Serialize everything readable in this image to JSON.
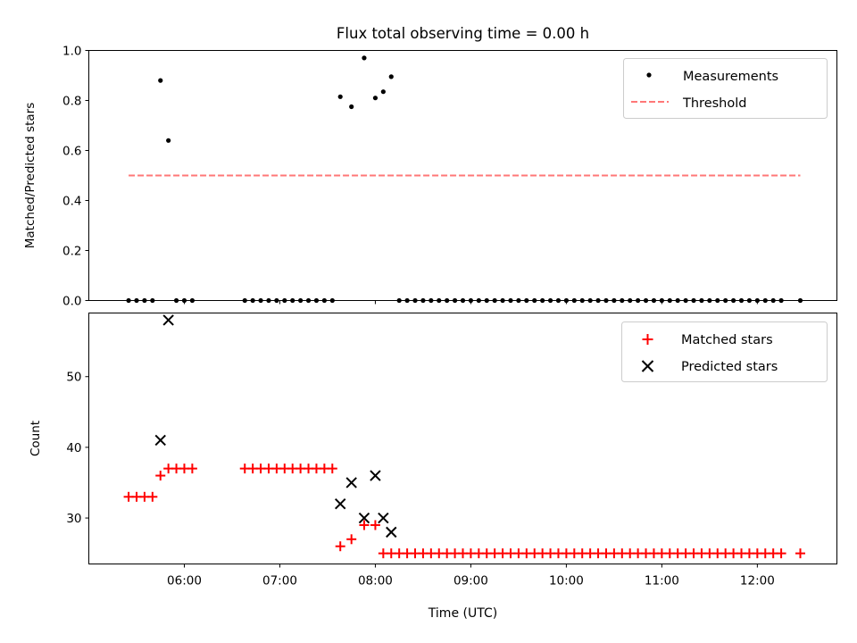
{
  "figure": {
    "title": "Flux total observing time = 0.00 h",
    "xlabel": "Time (UTC)"
  },
  "chart_data": [
    {
      "type": "scatter",
      "ylabel": "Matched/Predicted stars",
      "ylim": [
        0,
        1.0
      ],
      "yticks": [
        "0.0",
        "0.2",
        "0.4",
        "0.6",
        "0.8",
        "1.0"
      ],
      "xlim": [
        "05:00",
        "12:50"
      ],
      "legend": {
        "placement": "upper right",
        "entries": [
          "Measurements",
          "Threshold"
        ]
      },
      "series": [
        {
          "name": "Measurements",
          "color": "#000000",
          "marker": "dot",
          "x": [
            "05:25",
            "05:30",
            "05:35",
            "05:40",
            "05:45",
            "05:50",
            "05:55",
            "06:00",
            "06:05",
            "06:38",
            "06:43",
            "06:48",
            "06:53",
            "06:58",
            "07:03",
            "07:08",
            "07:13",
            "07:18",
            "07:23",
            "07:28",
            "07:33",
            "07:38",
            "07:45",
            "07:53",
            "08:00",
            "08:05",
            "08:10",
            "08:15",
            "08:20",
            "08:25",
            "08:30",
            "08:35",
            "08:40",
            "08:45",
            "08:50",
            "08:55",
            "09:00",
            "09:05",
            "09:10",
            "09:15",
            "09:20",
            "09:25",
            "09:30",
            "09:35",
            "09:40",
            "09:45",
            "09:50",
            "09:55",
            "10:00",
            "10:05",
            "10:10",
            "10:15",
            "10:20",
            "10:25",
            "10:30",
            "10:35",
            "10:40",
            "10:45",
            "10:50",
            "10:55",
            "11:00",
            "11:05",
            "11:10",
            "11:15",
            "11:20",
            "11:25",
            "11:30",
            "11:35",
            "11:40",
            "11:45",
            "11:50",
            "11:55",
            "12:00",
            "12:05",
            "12:10",
            "12:15",
            "12:27"
          ],
          "y": [
            0,
            0,
            0,
            0,
            0.88,
            0.64,
            0,
            0,
            0,
            0,
            0,
            0,
            0,
            0,
            0,
            0,
            0,
            0,
            0,
            0,
            0,
            0.815,
            0.775,
            0.97,
            0.81,
            0.835,
            0.895,
            0,
            0,
            0,
            0,
            0,
            0,
            0,
            0,
            0,
            0,
            0,
            0,
            0,
            0,
            0,
            0,
            0,
            0,
            0,
            0,
            0,
            0,
            0,
            0,
            0,
            0,
            0,
            0,
            0,
            0,
            0,
            0,
            0,
            0,
            0,
            0,
            0,
            0,
            0,
            0,
            0,
            0,
            0,
            0,
            0,
            0,
            0,
            0,
            0,
            0
          ]
        },
        {
          "name": "Threshold",
          "color": "#ff7777",
          "style": "dashed",
          "x": [
            "05:25",
            "12:27"
          ],
          "y": [
            0.5,
            0.5
          ]
        }
      ]
    },
    {
      "type": "scatter",
      "ylabel": "Count",
      "ylim": [
        23.5,
        59
      ],
      "yticks": [
        "30",
        "40",
        "50"
      ],
      "xlim": [
        "05:00",
        "12:50"
      ],
      "xticks": [
        "06:00",
        "07:00",
        "08:00",
        "09:00",
        "10:00",
        "11:00",
        "12:00"
      ],
      "legend": {
        "placement": "upper right",
        "entries": [
          "Matched stars",
          "Predicted stars"
        ]
      },
      "series": [
        {
          "name": "Matched stars",
          "color": "#ff0000",
          "marker": "plus",
          "x": [
            "05:25",
            "05:30",
            "05:35",
            "05:40",
            "05:45",
            "05:50",
            "05:55",
            "06:00",
            "06:05",
            "06:38",
            "06:43",
            "06:48",
            "06:53",
            "06:58",
            "07:03",
            "07:08",
            "07:13",
            "07:18",
            "07:23",
            "07:28",
            "07:33",
            "07:38",
            "07:45",
            "07:53",
            "08:00",
            "08:05",
            "08:10",
            "08:15",
            "08:20",
            "08:25",
            "08:30",
            "08:35",
            "08:40",
            "08:45",
            "08:50",
            "08:55",
            "09:00",
            "09:05",
            "09:10",
            "09:15",
            "09:20",
            "09:25",
            "09:30",
            "09:35",
            "09:40",
            "09:45",
            "09:50",
            "09:55",
            "10:00",
            "10:05",
            "10:10",
            "10:15",
            "10:20",
            "10:25",
            "10:30",
            "10:35",
            "10:40",
            "10:45",
            "10:50",
            "10:55",
            "11:00",
            "11:05",
            "11:10",
            "11:15",
            "11:20",
            "11:25",
            "11:30",
            "11:35",
            "11:40",
            "11:45",
            "11:50",
            "11:55",
            "12:00",
            "12:05",
            "12:10",
            "12:15",
            "12:27"
          ],
          "y": [
            33,
            33,
            33,
            33,
            36,
            37,
            37,
            37,
            37,
            37,
            37,
            37,
            37,
            37,
            37,
            37,
            37,
            37,
            37,
            37,
            37,
            26,
            27,
            29,
            29,
            25,
            25,
            25,
            25,
            25,
            25,
            25,
            25,
            25,
            25,
            25,
            25,
            25,
            25,
            25,
            25,
            25,
            25,
            25,
            25,
            25,
            25,
            25,
            25,
            25,
            25,
            25,
            25,
            25,
            25,
            25,
            25,
            25,
            25,
            25,
            25,
            25,
            25,
            25,
            25,
            25,
            25,
            25,
            25,
            25,
            25,
            25,
            25,
            25,
            25,
            25,
            25
          ]
        },
        {
          "name": "Predicted stars",
          "color": "#000000",
          "marker": "x",
          "x": [
            "05:45",
            "05:50",
            "07:38",
            "07:45",
            "07:53",
            "08:00",
            "08:05",
            "08:10"
          ],
          "y": [
            41,
            58,
            32,
            35,
            30,
            36,
            30,
            28
          ]
        }
      ]
    }
  ]
}
